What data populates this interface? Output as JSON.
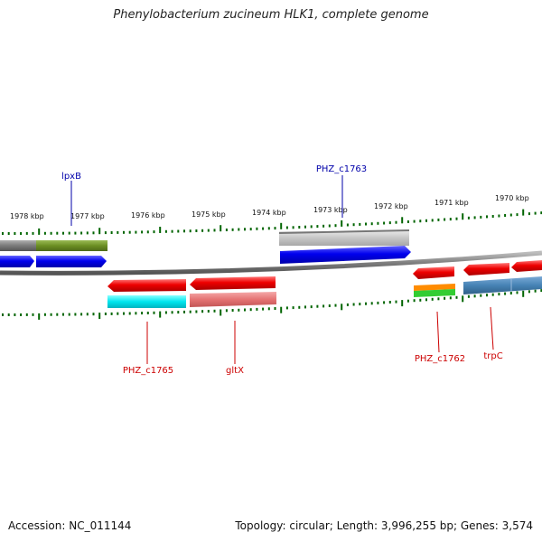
{
  "header": {
    "title": "Phenylobacterium zucineum HLK1, complete genome"
  },
  "footer": {
    "accession": "Accession: NC_011144",
    "topology": "Topology: circular; Length: 3,996,255 bp; Genes: 3,574"
  },
  "scale": {
    "tick_labels": [
      "1978 kbp",
      "1977 kbp",
      "1976 kbp",
      "1975 kbp",
      "1974 kbp",
      "1973 kbp",
      "1972 kbp",
      "1971 kbp",
      "1970 kbp"
    ]
  },
  "gene_labels": {
    "top": [
      "lpxB",
      "PHZ_c1763"
    ],
    "bottom": [
      "PHZ_c1765",
      "gltX",
      "PHZ_c1762",
      "trpC"
    ]
  },
  "colors": {
    "forward_label": "#0000aa",
    "reverse_label": "#cc0000",
    "tick": "#006400",
    "backbone": "#808080",
    "forward_gene": "#0000ee",
    "reverse_gene": "#ee0000",
    "cyan_feature": "#00e5ee",
    "olive_feature": "#6b8e23",
    "salmon_feature": "#e57373",
    "orange_feature": "#ff8c00",
    "green_feature": "#32cd32",
    "steelblue_feature": "#4682b4",
    "gray_feature": "#7a7a7a",
    "lightgray_feature": "#c0c0c0"
  }
}
